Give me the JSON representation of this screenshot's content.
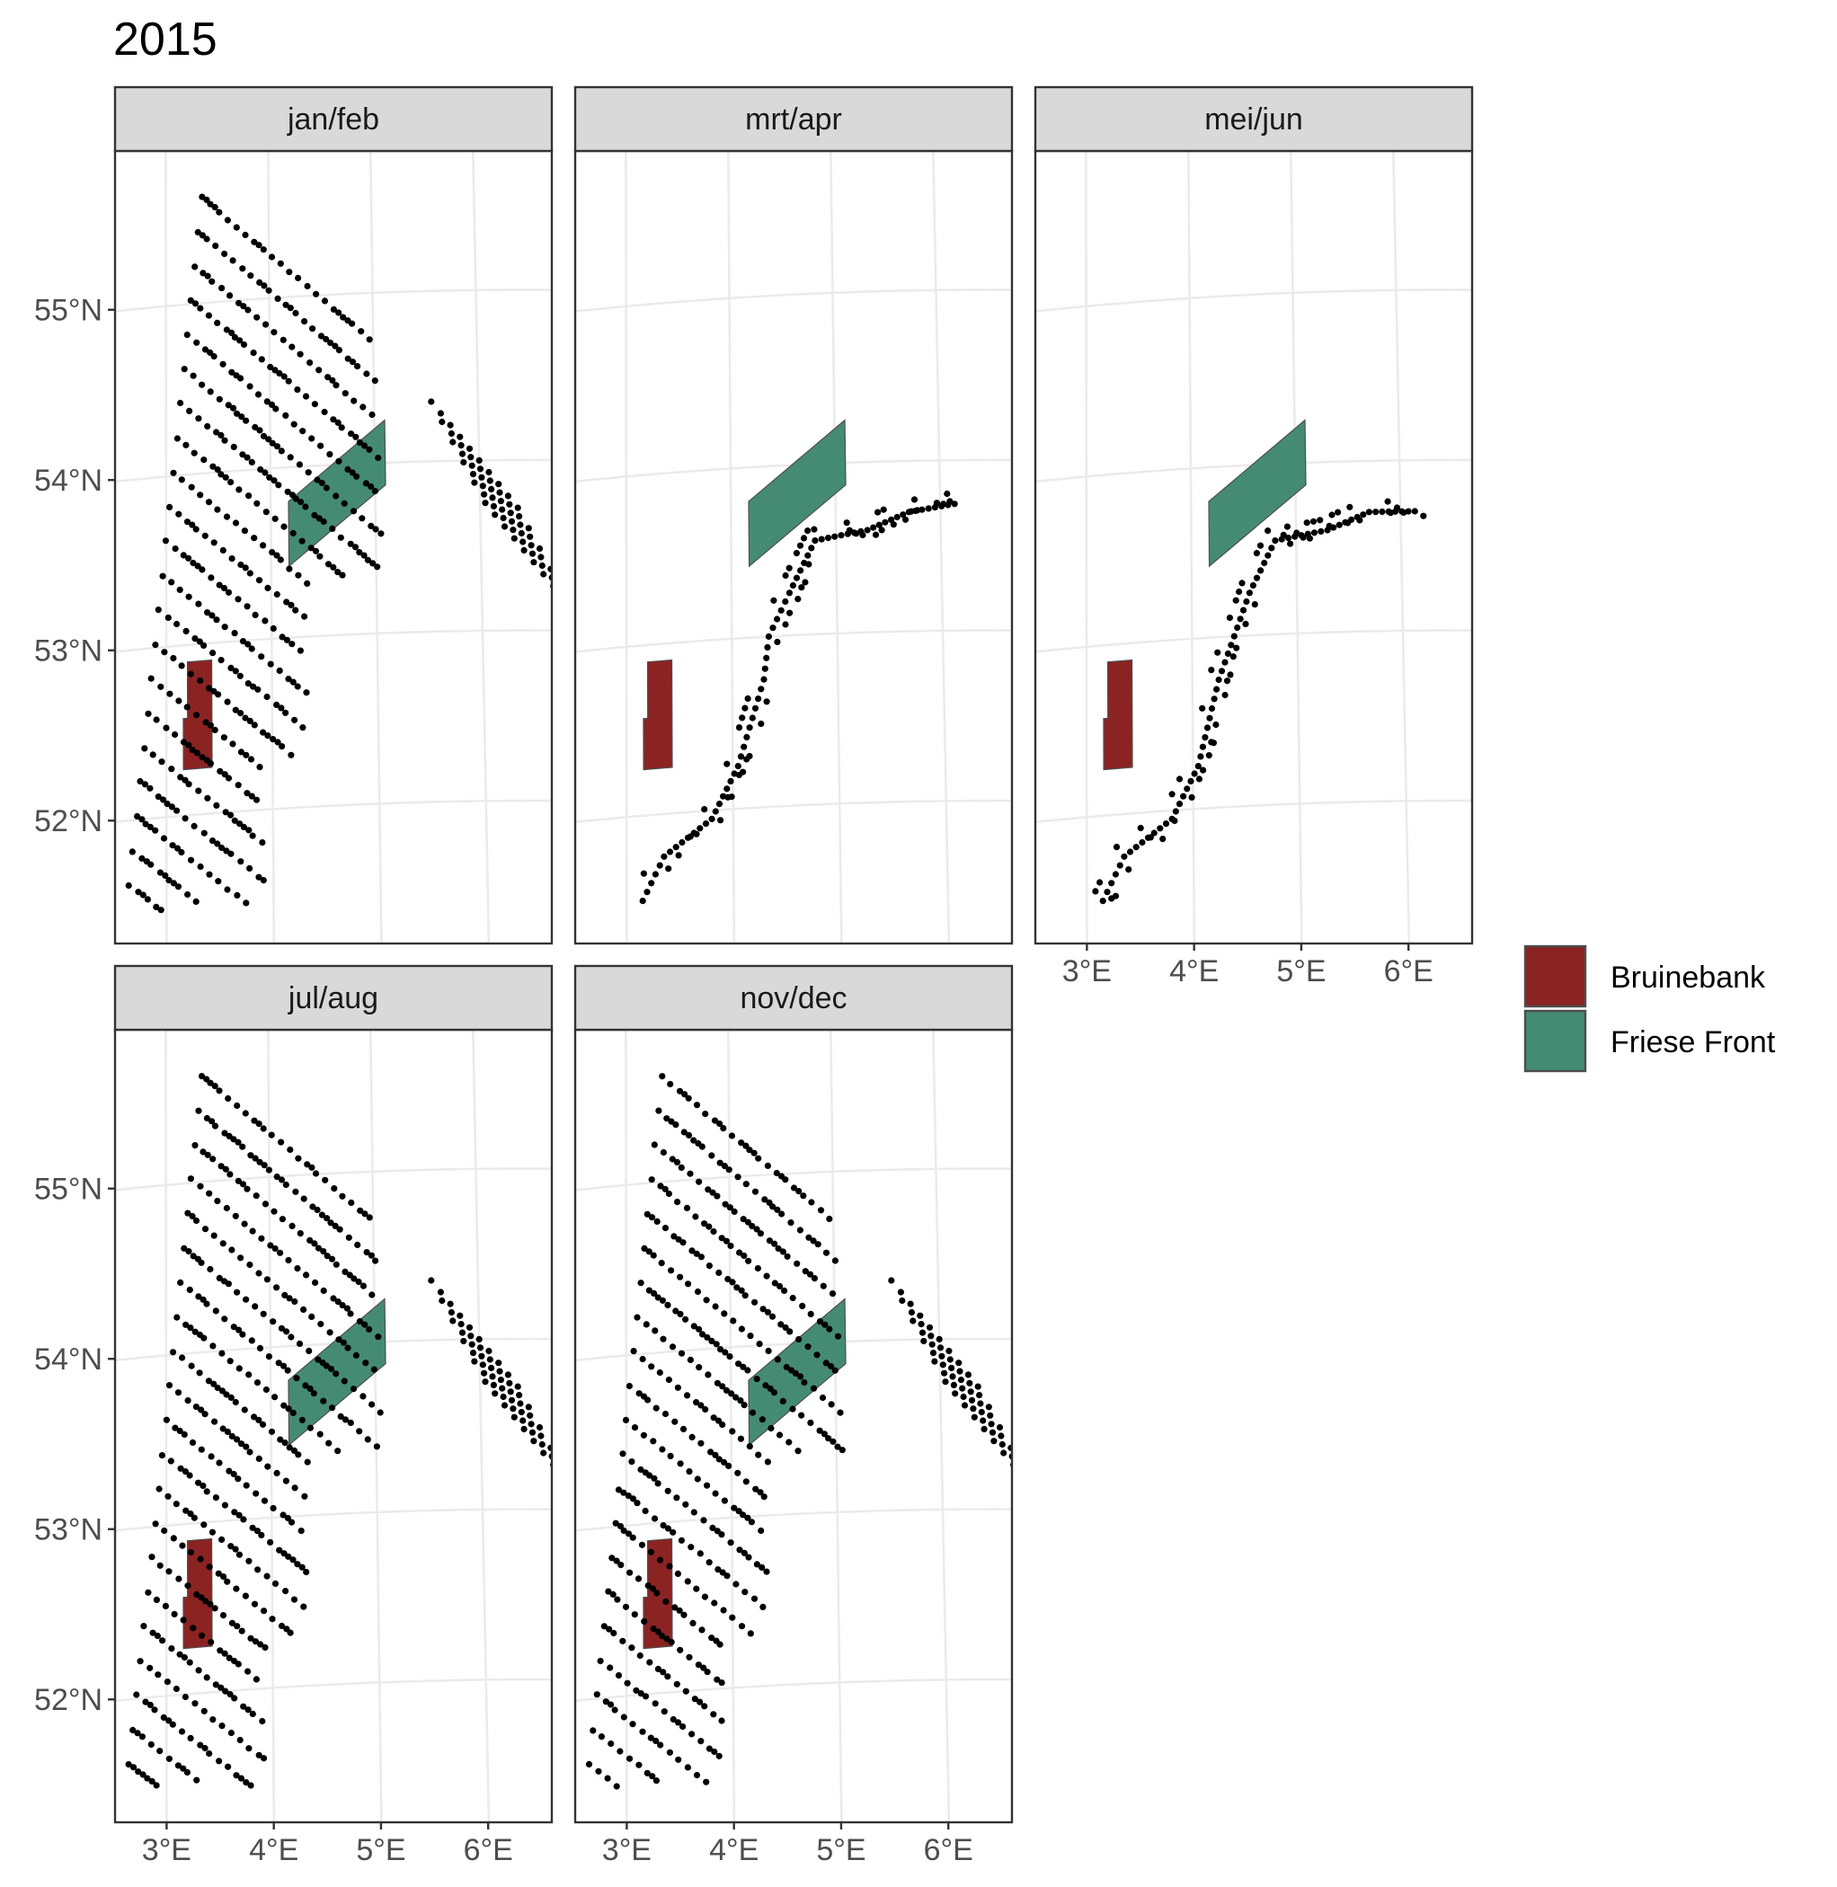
{
  "title": "2015",
  "panels": [
    {
      "label": "jan/feb",
      "survey": "full"
    },
    {
      "label": "mrt/apr",
      "survey": "transect"
    },
    {
      "label": "mei/jun",
      "survey": "transect"
    },
    {
      "label": "jul/aug",
      "survey": "full"
    },
    {
      "label": "nov/dec",
      "survey": "full"
    }
  ],
  "x_axis": {
    "ticks": [
      3,
      4,
      5,
      6
    ],
    "tick_labels": [
      "3°E",
      "4°E",
      "5°E",
      "6°E"
    ]
  },
  "y_axis": {
    "ticks": [
      52,
      53,
      54,
      55
    ],
    "tick_labels": [
      "52°N",
      "53°N",
      "54°N",
      "55°N"
    ]
  },
  "legend": {
    "items": [
      {
        "label": "Bruinebank",
        "color": "#8b2323"
      },
      {
        "label": "Friese Front",
        "color": "#458b74"
      }
    ]
  },
  "chart_data": {
    "type": "scatter",
    "title": "2015",
    "facets": [
      "jan/feb",
      "mrt/apr",
      "mei/jun",
      "jul/aug",
      "nov/dec"
    ],
    "xlim": [
      2.55,
      6.55
    ],
    "ylim": [
      51.3,
      55.9
    ],
    "grid": true,
    "legend_position": "right",
    "areas": [
      {
        "name": "Bruinebank",
        "color": "#8b2323",
        "polygon": [
          [
            3.2,
            52.9
          ],
          [
            3.43,
            52.9
          ],
          [
            3.43,
            52.27
          ],
          [
            3.16,
            52.27
          ],
          [
            3.16,
            52.57
          ],
          [
            3.2,
            52.57
          ]
        ]
      },
      {
        "name": "Friese Front",
        "color": "#458b74",
        "polygon": [
          [
            4.17,
            53.8
          ],
          [
            5.1,
            54.25
          ],
          [
            5.1,
            53.87
          ],
          [
            4.17,
            53.42
          ]
        ]
      }
    ],
    "survey_grid": {
      "point_color": "#000000",
      "line_direction": "NW-SE",
      "approx_station_count_full_survey": 1000,
      "transect_path_mrt_apr": [
        [
          3.15,
          51.5
        ],
        [
          3.35,
          51.75
        ],
        [
          3.8,
          51.95
        ],
        [
          4.05,
          52.25
        ],
        [
          4.3,
          52.75
        ],
        [
          4.35,
          53.0
        ],
        [
          4.55,
          53.25
        ],
        [
          4.8,
          53.55
        ],
        [
          5.3,
          53.6
        ],
        [
          5.7,
          53.7
        ],
        [
          6.2,
          53.75
        ]
      ],
      "transect_path_mei_jun": [
        [
          3.15,
          51.5
        ],
        [
          3.35,
          51.75
        ],
        [
          3.8,
          51.95
        ],
        [
          4.05,
          52.25
        ],
        [
          4.25,
          52.75
        ],
        [
          4.4,
          53.0
        ],
        [
          4.55,
          53.25
        ],
        [
          4.8,
          53.55
        ],
        [
          5.3,
          53.6
        ],
        [
          5.7,
          53.7
        ],
        [
          6.2,
          53.7
        ]
      ]
    }
  }
}
